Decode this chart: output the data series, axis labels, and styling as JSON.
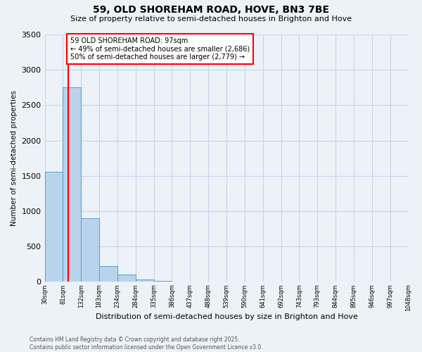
{
  "title": "59, OLD SHOREHAM ROAD, HOVE, BN3 7BE",
  "subtitle": "Size of property relative to semi-detached houses in Brighton and Hove",
  "xlabel": "Distribution of semi-detached houses by size in Brighton and Hove",
  "ylabel": "Number of semi-detached properties",
  "bin_labels": [
    "30sqm",
    "81sqm",
    "132sqm",
    "183sqm",
    "234sqm",
    "284sqm",
    "335sqm",
    "386sqm",
    "437sqm",
    "488sqm",
    "539sqm",
    "590sqm",
    "641sqm",
    "692sqm",
    "743sqm",
    "793sqm",
    "844sqm",
    "895sqm",
    "946sqm",
    "997sqm",
    "1048sqm"
  ],
  "bar_values": [
    1560,
    2750,
    900,
    220,
    100,
    30,
    10,
    3,
    1,
    0,
    0,
    0,
    0,
    0,
    0,
    0,
    0,
    0,
    0,
    0
  ],
  "bar_color": "#b8d4ed",
  "bar_edge_color": "#5b9fc0",
  "annotation_line1": "59 OLD SHOREHAM ROAD: 97sqm",
  "annotation_line2": "← 49% of semi-detached houses are smaller (2,686)",
  "annotation_line3": "50% of semi-detached houses are larger (2,779) →",
  "footer_line1": "Contains HM Land Registry data © Crown copyright and database right 2025.",
  "footer_line2": "Contains public sector information licensed under the Open Government Licence v3.0.",
  "ylim": [
    0,
    3500
  ],
  "yticks": [
    0,
    500,
    1000,
    1500,
    2000,
    2500,
    3000,
    3500
  ],
  "background_color": "#edf2f9",
  "grid_color": "#c8d4e8"
}
